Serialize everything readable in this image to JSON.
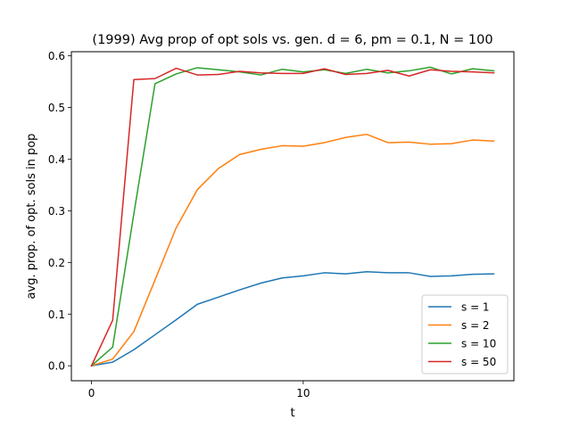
{
  "chart_data": {
    "type": "line",
    "title": "(1999) Avg prop of opt sols vs. gen. d = 6, pm = 0.1, N = 100",
    "xlabel": "t",
    "ylabel": "avg. prop. of opt. sols in pop",
    "xlim": [
      -0.95,
      19.95
    ],
    "ylim": [
      -0.029,
      0.608
    ],
    "xticks": [
      0,
      10
    ],
    "yticks": [
      0.0,
      0.1,
      0.2,
      0.3,
      0.4,
      0.5,
      0.6
    ],
    "ytick_labels": [
      "0.0",
      "0.1",
      "0.2",
      "0.3",
      "0.4",
      "0.5",
      "0.6"
    ],
    "grid": false,
    "legend_position": "lower-right",
    "x": [
      0,
      1,
      2,
      3,
      4,
      5,
      6,
      7,
      8,
      9,
      10,
      11,
      12,
      13,
      14,
      15,
      16,
      17,
      18,
      19
    ],
    "series": [
      {
        "name": "s = 1",
        "color": "#1f77b4",
        "values": [
          0.0,
          0.007,
          0.031,
          0.06,
          0.089,
          0.119,
          0.133,
          0.147,
          0.16,
          0.17,
          0.174,
          0.18,
          0.178,
          0.182,
          0.18,
          0.18,
          0.173,
          0.174,
          0.177,
          0.178
        ]
      },
      {
        "name": "s = 2",
        "color": "#ff7f0e",
        "values": [
          0.0,
          0.013,
          0.066,
          0.166,
          0.267,
          0.341,
          0.382,
          0.409,
          0.419,
          0.426,
          0.425,
          0.432,
          0.442,
          0.448,
          0.432,
          0.433,
          0.429,
          0.43,
          0.437,
          0.435
        ]
      },
      {
        "name": "s = 10",
        "color": "#2ca02c",
        "values": [
          0.0,
          0.036,
          0.294,
          0.546,
          0.565,
          0.577,
          0.573,
          0.569,
          0.563,
          0.574,
          0.569,
          0.573,
          0.566,
          0.574,
          0.567,
          0.571,
          0.578,
          0.565,
          0.575,
          0.571
        ]
      },
      {
        "name": "s = 50",
        "color": "#d62728",
        "values": [
          0.0,
          0.088,
          0.554,
          0.556,
          0.576,
          0.563,
          0.564,
          0.57,
          0.567,
          0.566,
          0.566,
          0.575,
          0.564,
          0.566,
          0.572,
          0.561,
          0.573,
          0.57,
          0.569,
          0.567
        ]
      }
    ]
  }
}
